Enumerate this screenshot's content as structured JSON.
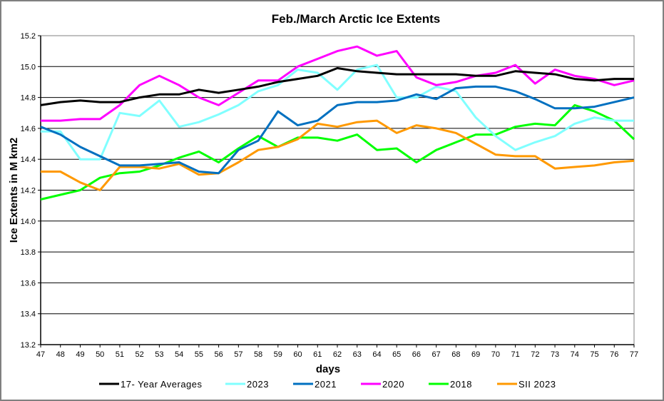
{
  "chart_data": {
    "type": "line",
    "title": "Feb./March Arctic Ice Extents",
    "xlabel": "days",
    "ylabel": "Ice Extents in M km2",
    "ylim": [
      13.2,
      15.2
    ],
    "xlim": [
      47,
      77
    ],
    "y_ticks": [
      "13.2",
      "13.4",
      "13.6",
      "13.8",
      "14.0",
      "14.2",
      "14.4",
      "14.6",
      "14.8",
      "15.0",
      "15.2"
    ],
    "x_ticks": [
      "47",
      "48",
      "49",
      "50",
      "51",
      "52",
      "53",
      "54",
      "55",
      "56",
      "57",
      "58",
      "59",
      "60",
      "61",
      "62",
      "63",
      "64",
      "65",
      "66",
      "67",
      "68",
      "69",
      "70",
      "71",
      "72",
      "73",
      "74",
      "75",
      "76",
      "77"
    ],
    "grid": "horizontal",
    "legend_position": "bottom",
    "x": [
      47,
      48,
      49,
      50,
      51,
      52,
      53,
      54,
      55,
      56,
      57,
      58,
      59,
      60,
      61,
      62,
      63,
      64,
      65,
      66,
      67,
      68,
      69,
      70,
      71,
      72,
      73,
      74,
      75,
      76,
      77
    ],
    "series": [
      {
        "name": "17- Year Averages",
        "color": "#000000",
        "values": [
          14.75,
          14.77,
          14.78,
          14.77,
          14.77,
          14.8,
          14.82,
          14.82,
          14.85,
          14.83,
          14.85,
          14.87,
          14.9,
          14.92,
          14.94,
          14.99,
          14.97,
          14.96,
          14.95,
          14.95,
          14.95,
          14.95,
          14.94,
          14.94,
          14.97,
          14.96,
          14.95,
          14.92,
          14.91,
          14.92,
          14.92
        ]
      },
      {
        "name": "2023",
        "color": "#80FFFF",
        "values": [
          14.58,
          14.58,
          14.4,
          14.4,
          14.7,
          14.68,
          14.78,
          14.61,
          14.64,
          14.69,
          14.75,
          14.84,
          14.88,
          14.98,
          14.96,
          14.85,
          14.98,
          15.01,
          14.8,
          14.8,
          14.87,
          14.84,
          14.67,
          14.55,
          14.46,
          14.51,
          14.55,
          14.63,
          14.67,
          14.65,
          14.65
        ]
      },
      {
        "name": "2021",
        "color": "#0070C0",
        "values": [
          14.61,
          14.56,
          14.48,
          14.42,
          14.36,
          14.36,
          14.37,
          14.38,
          14.32,
          14.31,
          14.46,
          14.52,
          14.71,
          14.62,
          14.65,
          14.75,
          14.77,
          14.77,
          14.78,
          14.82,
          14.79,
          14.86,
          14.87,
          14.87,
          14.84,
          14.79,
          14.73,
          14.73,
          14.74,
          14.77,
          14.8
        ]
      },
      {
        "name": "2020",
        "color": "#FF00FF",
        "values": [
          14.65,
          14.65,
          14.66,
          14.66,
          14.75,
          14.88,
          14.94,
          14.88,
          14.8,
          14.75,
          14.83,
          14.91,
          14.91,
          15.0,
          15.05,
          15.1,
          15.13,
          15.07,
          15.1,
          14.93,
          14.88,
          14.9,
          14.94,
          14.96,
          15.01,
          14.89,
          14.98,
          14.94,
          14.92,
          14.88,
          14.91
        ]
      },
      {
        "name": "2018",
        "color": "#00FF00",
        "values": [
          14.14,
          14.17,
          14.2,
          14.28,
          14.31,
          14.32,
          14.36,
          14.41,
          14.45,
          14.38,
          14.47,
          14.55,
          14.48,
          14.54,
          14.54,
          14.52,
          14.56,
          14.46,
          14.47,
          14.38,
          14.46,
          14.51,
          14.56,
          14.56,
          14.61,
          14.63,
          14.62,
          14.75,
          14.71,
          14.65,
          14.53
        ]
      },
      {
        "name": "SII 2023",
        "color": "#FF9900",
        "values": [
          14.32,
          14.32,
          14.25,
          14.2,
          14.35,
          14.35,
          14.34,
          14.37,
          14.3,
          14.31,
          14.38,
          14.46,
          14.48,
          14.53,
          14.63,
          14.61,
          14.64,
          14.65,
          14.57,
          14.62,
          14.6,
          14.57,
          14.5,
          14.43,
          14.42,
          14.42,
          14.34,
          14.35,
          14.36,
          14.38,
          14.39
        ]
      }
    ]
  }
}
